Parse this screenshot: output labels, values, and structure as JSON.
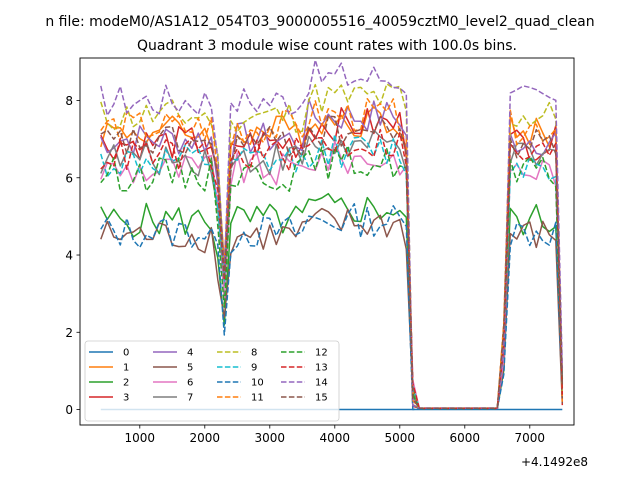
{
  "figure": {
    "suptitle": "n file: modeM0/AS1A12_054T03_9000005516_40059cztM0_level2_quad_clean"
  },
  "chart_data": {
    "type": "line",
    "title": "Quadrant 3 module wise count rates with 100.0s bins.",
    "xlabel": "",
    "ylabel": "",
    "x_offset_label": "+4.1492e8",
    "xlim": [
      80,
      7680
    ],
    "ylim": [
      -0.4,
      9.1
    ],
    "xticks": [
      1000,
      2000,
      3000,
      4000,
      5000,
      6000,
      7000
    ],
    "yticks": [
      0,
      2,
      4,
      6,
      8
    ],
    "grid": false,
    "legend_position": "lower-left",
    "legend_ncols": 4,
    "x": [
      400,
      500,
      600,
      700,
      800,
      900,
      1000,
      1100,
      1200,
      1300,
      1400,
      1500,
      1600,
      1700,
      1800,
      1900,
      2000,
      2100,
      2200,
      2300,
      2400,
      2500,
      2600,
      2700,
      2800,
      2900,
      3000,
      3100,
      3200,
      3300,
      3400,
      3500,
      3600,
      3700,
      3800,
      3900,
      4000,
      4100,
      4200,
      4300,
      4400,
      4500,
      4600,
      4700,
      4800,
      4900,
      5000,
      5100,
      5200,
      5300,
      5400,
      5500,
      5600,
      5700,
      5800,
      5900,
      6000,
      6100,
      6200,
      6300,
      6400,
      6500,
      6600,
      6700,
      6800,
      6900,
      7000,
      7100,
      7200,
      7300,
      7400,
      7500
    ],
    "series": [
      {
        "name": "0",
        "color": "#1f77b4",
        "dash": "solid",
        "level": 0,
        "gap": 0
      },
      {
        "name": "1",
        "color": "#ff7f0e",
        "dash": "solid",
        "level": 7.2,
        "gap": 0.05
      },
      {
        "name": "2",
        "color": "#2ca02c",
        "dash": "solid",
        "level": 4.9,
        "gap": 0.05
      },
      {
        "name": "3",
        "color": "#d62728",
        "dash": "solid",
        "level": 6.9,
        "gap": 0.08
      },
      {
        "name": "4",
        "color": "#9467bd",
        "dash": "solid",
        "level": 7.0,
        "gap": 0.1
      },
      {
        "name": "5",
        "color": "#8c564b",
        "dash": "solid",
        "level": 4.5,
        "gap": 0.05
      },
      {
        "name": "6",
        "color": "#e377c2",
        "dash": "solid",
        "level": 6.2,
        "gap": 0.05
      },
      {
        "name": "7",
        "color": "#7f7f7f",
        "dash": "solid",
        "level": 6.5,
        "gap": 0.05
      },
      {
        "name": "8",
        "color": "#bcbd22",
        "dash": "dashed",
        "level": 7.6,
        "gap": 0.08
      },
      {
        "name": "9",
        "color": "#17becf",
        "dash": "dashed",
        "level": 6.4,
        "gap": 0.05
      },
      {
        "name": "10",
        "color": "#1f77b4",
        "dash": "dashed",
        "level": 4.6,
        "gap": 0.05
      },
      {
        "name": "11",
        "color": "#ff7f0e",
        "dash": "dashed",
        "level": 7.3,
        "gap": 0.05
      },
      {
        "name": "12",
        "color": "#2ca02c",
        "dash": "dashed",
        "level": 6.1,
        "gap": 0.05
      },
      {
        "name": "13",
        "color": "#d62728",
        "dash": "dashed",
        "level": 6.6,
        "gap": 0.05
      },
      {
        "name": "14",
        "color": "#9467bd",
        "dash": "dashed",
        "level": 8.0,
        "gap": 0.1
      },
      {
        "name": "15",
        "color": "#8c564b",
        "dash": "dashed",
        "level": 6.9,
        "gap": 0.05
      }
    ],
    "notes": "Series hold near their level from 400 to 5100, dip sharply around 2300, drop to ~0 from 5300 to 6500, then recover from 6700 to 7400 and fall to ~0.5 at 7500."
  }
}
